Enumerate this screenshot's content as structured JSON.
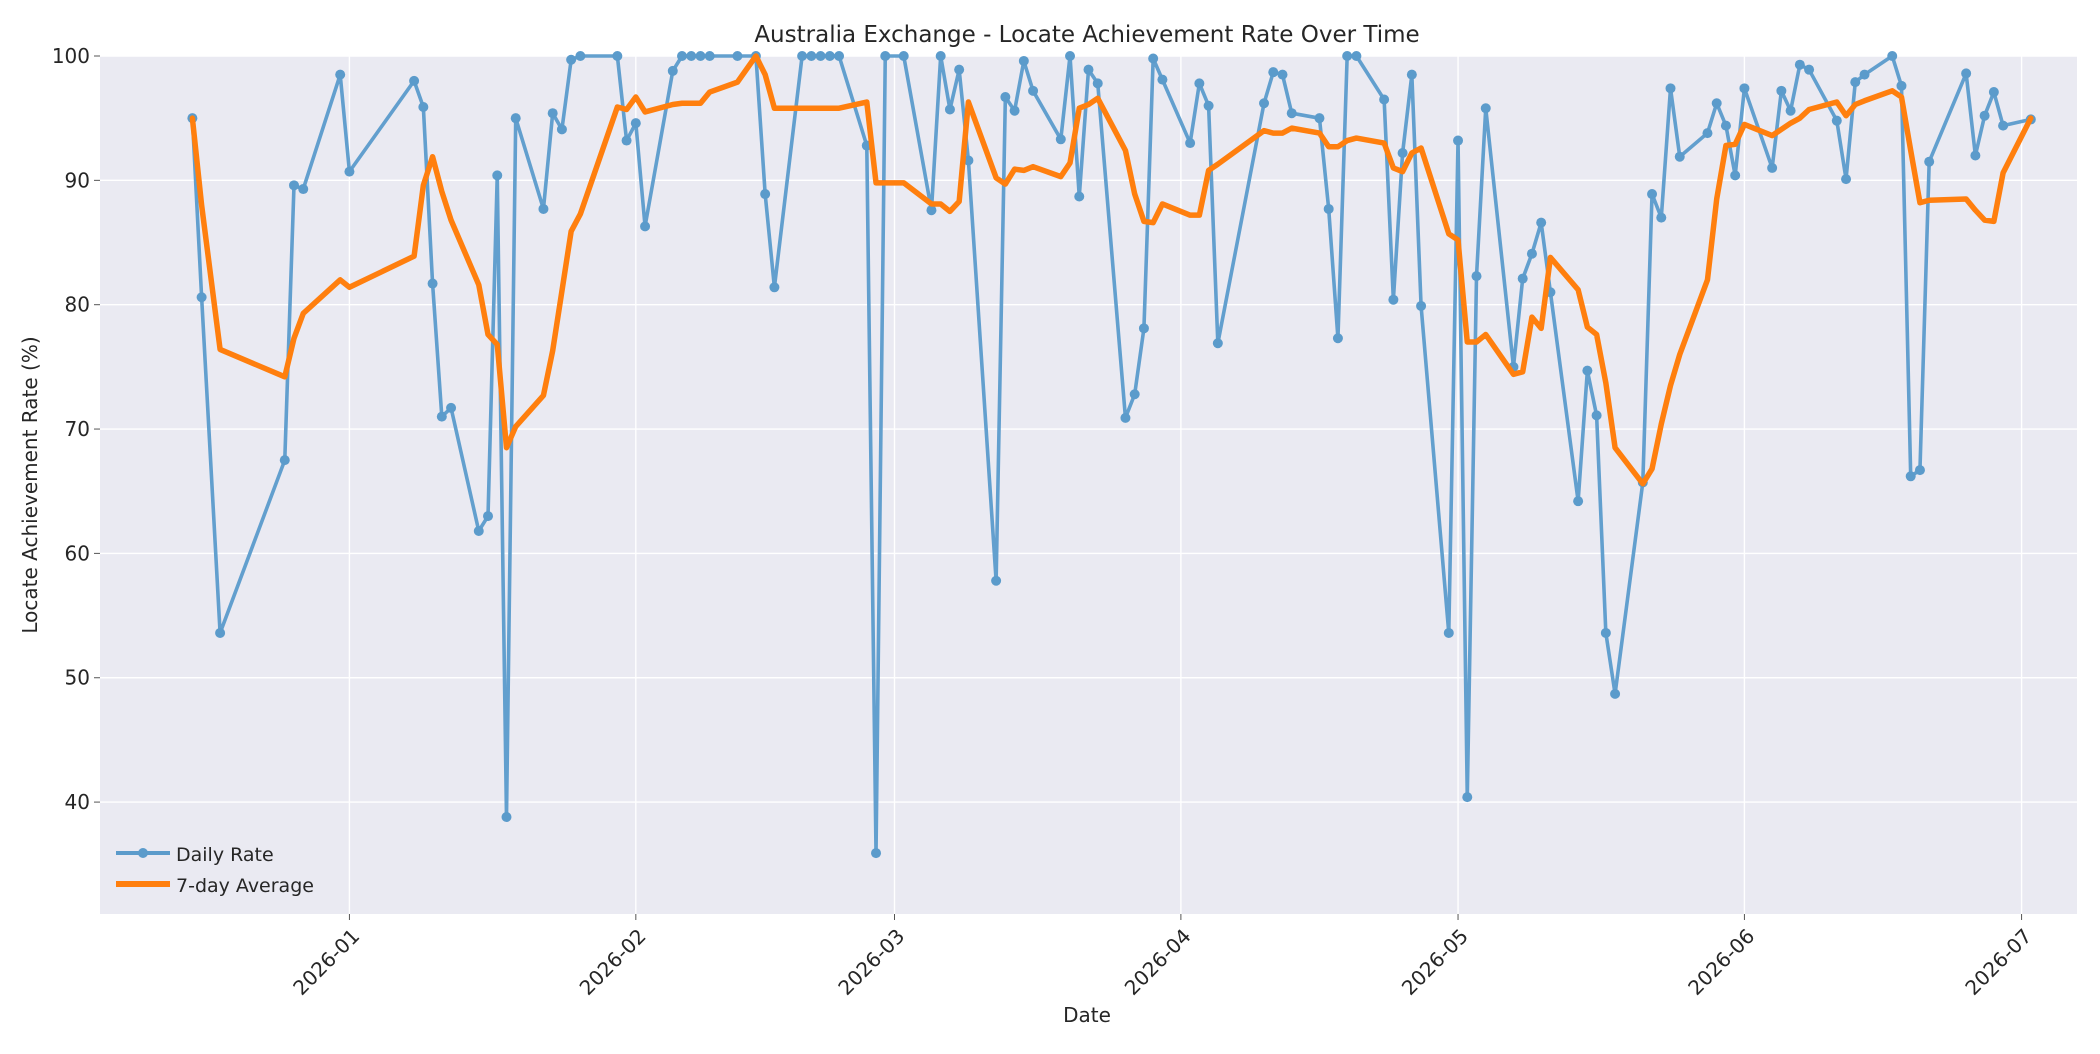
{
  "chart_data": {
    "type": "line",
    "title": "Australia Exchange - Locate Achievement Rate Over Time",
    "xlabel": "Date",
    "ylabel": "Locate Achievement Rate (%)",
    "xlim": [
      "2025-12-05",
      "2026-07-07"
    ],
    "ylim": [
      31,
      100
    ],
    "x_ticks": [
      "2026-01-01",
      "2026-02-01",
      "2026-03-01",
      "2026-04-01",
      "2026-05-01",
      "2026-06-01",
      "2026-07-01"
    ],
    "x_tick_labels": [
      "2026-01",
      "2026-02",
      "2026-03",
      "2026-04",
      "2026-05",
      "2026-06",
      "2026-07"
    ],
    "y_ticks": [
      40,
      50,
      60,
      70,
      80,
      90,
      100
    ],
    "y_tick_labels": [
      "40",
      "50",
      "60",
      "70",
      "80",
      "90",
      "100"
    ],
    "grid": true,
    "legend_position": "lower-left",
    "colors": {
      "plot_bg": "#EAEAF2",
      "grid": "#FFFFFF",
      "daily": "#5B9BCB",
      "average": "#FF7F0E"
    },
    "series": [
      {
        "name": "Daily Rate",
        "style": "line-markers",
        "points": [
          [
            "2025-12-15",
            95.0
          ],
          [
            "2025-12-16",
            80.6
          ],
          [
            "2025-12-18",
            53.6
          ],
          [
            "2025-12-25",
            67.5
          ],
          [
            "2025-12-26",
            89.6
          ],
          [
            "2025-12-27",
            89.3
          ],
          [
            "2025-12-31",
            98.5
          ],
          [
            "2026-01-01",
            90.7
          ],
          [
            "2026-01-08",
            98.0
          ],
          [
            "2026-01-09",
            95.9
          ],
          [
            "2026-01-10",
            81.7
          ],
          [
            "2026-01-11",
            71.0
          ],
          [
            "2026-01-12",
            71.7
          ],
          [
            "2026-01-15",
            61.8
          ],
          [
            "2026-01-16",
            63.0
          ],
          [
            "2026-01-17",
            90.4
          ],
          [
            "2026-01-18",
            38.8
          ],
          [
            "2026-01-19",
            95.0
          ],
          [
            "2026-01-22",
            87.7
          ],
          [
            "2026-01-23",
            95.4
          ],
          [
            "2026-01-24",
            94.1
          ],
          [
            "2026-01-25",
            99.7
          ],
          [
            "2026-01-26",
            100.0
          ],
          [
            "2026-01-30",
            100.0
          ],
          [
            "2026-01-31",
            93.2
          ],
          [
            "2026-02-01",
            94.6
          ],
          [
            "2026-02-02",
            86.3
          ],
          [
            "2026-02-05",
            98.8
          ],
          [
            "2026-02-06",
            100.0
          ],
          [
            "2026-02-07",
            100.0
          ],
          [
            "2026-02-08",
            100.0
          ],
          [
            "2026-02-09",
            100.0
          ],
          [
            "2026-02-12",
            100.0
          ],
          [
            "2026-02-14",
            100.0
          ],
          [
            "2026-02-15",
            88.9
          ],
          [
            "2026-02-16",
            81.4
          ],
          [
            "2026-02-19",
            100.0
          ],
          [
            "2026-02-20",
            100.0
          ],
          [
            "2026-02-21",
            100.0
          ],
          [
            "2026-02-22",
            100.0
          ],
          [
            "2026-02-23",
            100.0
          ],
          [
            "2026-02-26",
            92.8
          ],
          [
            "2026-02-27",
            35.9
          ],
          [
            "2026-02-28",
            100.0
          ],
          [
            "2026-03-02",
            100.0
          ],
          [
            "2026-03-05",
            87.6
          ],
          [
            "2026-03-06",
            100.0
          ],
          [
            "2026-03-07",
            95.7
          ],
          [
            "2026-03-08",
            98.9
          ],
          [
            "2026-03-09",
            91.6
          ],
          [
            "2026-03-12",
            57.8
          ],
          [
            "2026-03-13",
            96.7
          ],
          [
            "2026-03-14",
            95.6
          ],
          [
            "2026-03-15",
            99.6
          ],
          [
            "2026-03-16",
            97.2
          ],
          [
            "2026-03-19",
            93.3
          ],
          [
            "2026-03-20",
            100.0
          ],
          [
            "2026-03-21",
            88.7
          ],
          [
            "2026-03-22",
            98.9
          ],
          [
            "2026-03-23",
            97.8
          ],
          [
            "2026-03-26",
            70.9
          ],
          [
            "2026-03-27",
            72.8
          ],
          [
            "2026-03-28",
            78.1
          ],
          [
            "2026-03-29",
            99.8
          ],
          [
            "2026-03-30",
            98.1
          ],
          [
            "2026-04-02",
            93.0
          ],
          [
            "2026-04-03",
            97.8
          ],
          [
            "2026-04-04",
            96.0
          ],
          [
            "2026-04-05",
            76.9
          ],
          [
            "2026-04-10",
            96.2
          ],
          [
            "2026-04-11",
            98.7
          ],
          [
            "2026-04-12",
            98.5
          ],
          [
            "2026-04-13",
            95.4
          ],
          [
            "2026-04-16",
            95.0
          ],
          [
            "2026-04-17",
            87.7
          ],
          [
            "2026-04-18",
            77.3
          ],
          [
            "2026-04-19",
            100.0
          ],
          [
            "2026-04-20",
            100.0
          ],
          [
            "2026-04-23",
            96.5
          ],
          [
            "2026-04-24",
            80.4
          ],
          [
            "2026-04-25",
            92.2
          ],
          [
            "2026-04-26",
            98.5
          ],
          [
            "2026-04-27",
            79.9
          ],
          [
            "2026-04-30",
            53.6
          ],
          [
            "2026-05-01",
            93.2
          ],
          [
            "2026-05-02",
            40.4
          ],
          [
            "2026-05-03",
            82.3
          ],
          [
            "2026-05-04",
            95.8
          ],
          [
            "2026-05-07",
            75.0
          ],
          [
            "2026-05-08",
            82.1
          ],
          [
            "2026-05-09",
            84.1
          ],
          [
            "2026-05-10",
            86.6
          ],
          [
            "2026-05-11",
            81.0
          ],
          [
            "2026-05-14",
            64.2
          ],
          [
            "2026-05-15",
            74.7
          ],
          [
            "2026-05-16",
            71.1
          ],
          [
            "2026-05-17",
            53.6
          ],
          [
            "2026-05-18",
            48.7
          ],
          [
            "2026-05-21",
            65.7
          ],
          [
            "2026-05-22",
            88.9
          ],
          [
            "2026-05-23",
            87.0
          ],
          [
            "2026-05-24",
            97.4
          ],
          [
            "2026-05-25",
            91.9
          ],
          [
            "2026-05-28",
            93.8
          ],
          [
            "2026-05-29",
            96.2
          ],
          [
            "2026-05-30",
            94.4
          ],
          [
            "2026-05-31",
            90.4
          ],
          [
            "2026-06-01",
            97.4
          ],
          [
            "2026-06-04",
            91.0
          ],
          [
            "2026-06-05",
            97.2
          ],
          [
            "2026-06-06",
            95.6
          ],
          [
            "2026-06-07",
            99.3
          ],
          [
            "2026-06-08",
            98.9
          ],
          [
            "2026-06-11",
            94.8
          ],
          [
            "2026-06-12",
            90.1
          ],
          [
            "2026-06-13",
            97.9
          ],
          [
            "2026-06-14",
            98.5
          ],
          [
            "2026-06-17",
            100.0
          ],
          [
            "2026-06-18",
            97.6
          ],
          [
            "2026-06-19",
            66.2
          ],
          [
            "2026-06-20",
            66.7
          ],
          [
            "2026-06-21",
            91.5
          ],
          [
            "2026-06-25",
            98.6
          ],
          [
            "2026-06-26",
            92.0
          ],
          [
            "2026-06-27",
            95.2
          ],
          [
            "2026-06-28",
            97.1
          ],
          [
            "2026-06-29",
            94.4
          ],
          [
            "2026-07-02",
            94.9
          ]
        ]
      },
      {
        "name": "7-day Average",
        "style": "line",
        "points": [
          [
            "2025-12-15",
            95.0
          ],
          [
            "2025-12-16",
            88.0
          ],
          [
            "2025-12-18",
            76.4
          ],
          [
            "2025-12-25",
            74.2
          ],
          [
            "2025-12-26",
            77.3
          ],
          [
            "2025-12-27",
            79.3
          ],
          [
            "2025-12-31",
            82.0
          ],
          [
            "2026-01-01",
            81.4
          ],
          [
            "2026-01-08",
            83.9
          ],
          [
            "2026-01-09",
            89.6
          ],
          [
            "2026-01-10",
            91.9
          ],
          [
            "2026-01-11",
            89.1
          ],
          [
            "2026-01-12",
            86.8
          ],
          [
            "2026-01-15",
            81.6
          ],
          [
            "2026-01-16",
            77.6
          ],
          [
            "2026-01-17",
            76.8
          ],
          [
            "2026-01-18",
            68.5
          ],
          [
            "2026-01-19",
            70.2
          ],
          [
            "2026-01-22",
            72.7
          ],
          [
            "2026-01-23",
            76.3
          ],
          [
            "2026-01-24",
            81.1
          ],
          [
            "2026-01-25",
            85.9
          ],
          [
            "2026-01-26",
            87.3
          ],
          [
            "2026-01-30",
            95.9
          ],
          [
            "2026-01-31",
            95.7
          ],
          [
            "2026-02-01",
            96.7
          ],
          [
            "2026-02-02",
            95.5
          ],
          [
            "2026-02-05",
            96.1
          ],
          [
            "2026-02-06",
            96.2
          ],
          [
            "2026-02-07",
            96.2
          ],
          [
            "2026-02-08",
            96.2
          ],
          [
            "2026-02-09",
            97.1
          ],
          [
            "2026-02-12",
            97.9
          ],
          [
            "2026-02-14",
            100.0
          ],
          [
            "2026-02-15",
            98.5
          ],
          [
            "2026-02-16",
            95.8
          ],
          [
            "2026-02-19",
            95.8
          ],
          [
            "2026-02-20",
            95.8
          ],
          [
            "2026-02-21",
            95.8
          ],
          [
            "2026-02-22",
            95.8
          ],
          [
            "2026-02-23",
            95.8
          ],
          [
            "2026-02-26",
            96.3
          ],
          [
            "2026-02-27",
            89.8
          ],
          [
            "2026-02-28",
            89.8
          ],
          [
            "2026-03-02",
            89.8
          ],
          [
            "2026-03-05",
            88.1
          ],
          [
            "2026-03-06",
            88.1
          ],
          [
            "2026-03-07",
            87.5
          ],
          [
            "2026-03-08",
            88.3
          ],
          [
            "2026-03-09",
            96.3
          ],
          [
            "2026-03-12",
            90.2
          ],
          [
            "2026-03-13",
            89.7
          ],
          [
            "2026-03-14",
            90.9
          ],
          [
            "2026-03-15",
            90.8
          ],
          [
            "2026-03-16",
            91.1
          ],
          [
            "2026-03-19",
            90.3
          ],
          [
            "2026-03-20",
            91.4
          ],
          [
            "2026-03-21",
            95.8
          ],
          [
            "2026-03-22",
            96.1
          ],
          [
            "2026-03-23",
            96.6
          ],
          [
            "2026-03-26",
            92.4
          ],
          [
            "2026-03-27",
            88.9
          ],
          [
            "2026-03-28",
            86.7
          ],
          [
            "2026-03-29",
            86.6
          ],
          [
            "2026-03-30",
            88.1
          ],
          [
            "2026-04-02",
            87.2
          ],
          [
            "2026-04-03",
            87.2
          ],
          [
            "2026-04-04",
            90.8
          ],
          [
            "2026-04-05",
            91.3
          ],
          [
            "2026-04-10",
            94.0
          ],
          [
            "2026-04-11",
            93.8
          ],
          [
            "2026-04-12",
            93.8
          ],
          [
            "2026-04-13",
            94.2
          ],
          [
            "2026-04-16",
            93.8
          ],
          [
            "2026-04-17",
            92.7
          ],
          [
            "2026-04-18",
            92.7
          ],
          [
            "2026-04-19",
            93.2
          ],
          [
            "2026-04-20",
            93.4
          ],
          [
            "2026-04-23",
            93.0
          ],
          [
            "2026-04-24",
            91.0
          ],
          [
            "2026-04-25",
            90.7
          ],
          [
            "2026-04-26",
            92.2
          ],
          [
            "2026-04-27",
            92.6
          ],
          [
            "2026-04-30",
            85.7
          ],
          [
            "2026-05-01",
            85.2
          ],
          [
            "2026-05-02",
            77.0
          ],
          [
            "2026-05-03",
            77.0
          ],
          [
            "2026-05-04",
            77.6
          ],
          [
            "2026-05-07",
            74.4
          ],
          [
            "2026-05-08",
            74.6
          ],
          [
            "2026-05-09",
            79.0
          ],
          [
            "2026-05-10",
            78.1
          ],
          [
            "2026-05-11",
            83.8
          ],
          [
            "2026-05-14",
            81.2
          ],
          [
            "2026-05-15",
            78.2
          ],
          [
            "2026-05-16",
            77.6
          ],
          [
            "2026-05-17",
            73.7
          ],
          [
            "2026-05-18",
            68.5
          ],
          [
            "2026-05-21",
            65.6
          ],
          [
            "2026-05-22",
            66.8
          ],
          [
            "2026-05-23",
            70.4
          ],
          [
            "2026-05-24",
            73.5
          ],
          [
            "2026-05-25",
            76.0
          ],
          [
            "2026-05-28",
            82.0
          ],
          [
            "2026-05-29",
            88.5
          ],
          [
            "2026-05-30",
            92.8
          ],
          [
            "2026-05-31",
            92.9
          ],
          [
            "2026-06-01",
            94.5
          ],
          [
            "2026-06-04",
            93.6
          ],
          [
            "2026-06-05",
            94.1
          ],
          [
            "2026-06-06",
            94.6
          ],
          [
            "2026-06-07",
            95.0
          ],
          [
            "2026-06-08",
            95.7
          ],
          [
            "2026-06-11",
            96.3
          ],
          [
            "2026-06-12",
            95.2
          ],
          [
            "2026-06-13",
            96.1
          ],
          [
            "2026-06-14",
            96.4
          ],
          [
            "2026-06-17",
            97.2
          ],
          [
            "2026-06-18",
            96.7
          ],
          [
            "2026-06-19",
            92.4
          ],
          [
            "2026-06-20",
            88.2
          ],
          [
            "2026-06-21",
            88.4
          ],
          [
            "2026-06-25",
            88.5
          ],
          [
            "2026-06-26",
            87.6
          ],
          [
            "2026-06-27",
            86.8
          ],
          [
            "2026-06-28",
            86.7
          ],
          [
            "2026-06-29",
            90.6
          ],
          [
            "2026-07-02",
            95.0
          ]
        ]
      }
    ]
  }
}
